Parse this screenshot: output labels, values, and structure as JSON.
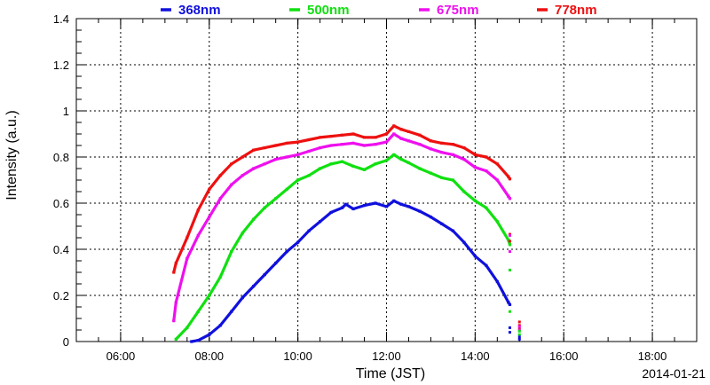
{
  "chart_data": {
    "type": "scatter",
    "xlabel": "Time (JST)",
    "ylabel": "Intensity (a.u.)",
    "date": "2014-01-21",
    "xlim": [
      "05:00",
      "19:00"
    ],
    "ylim": [
      0,
      1.4
    ],
    "grid": true,
    "legend_position": "top",
    "x_ticks": [
      "06:00",
      "08:00",
      "10:00",
      "12:00",
      "14:00",
      "16:00",
      "18:00"
    ],
    "y_ticks": [
      "0",
      "0.2",
      "0.4",
      "0.6",
      "0.8",
      "1",
      "1.2",
      "1.4"
    ],
    "series": [
      {
        "name": "368nm",
        "color": "#1010dd",
        "points": [
          [
            "07:36",
            0.0
          ],
          [
            "07:45",
            0.005
          ],
          [
            "08:00",
            0.03
          ],
          [
            "08:15",
            0.07
          ],
          [
            "08:30",
            0.13
          ],
          [
            "08:45",
            0.19
          ],
          [
            "09:00",
            0.24
          ],
          [
            "09:15",
            0.29
          ],
          [
            "09:30",
            0.34
          ],
          [
            "09:45",
            0.39
          ],
          [
            "10:00",
            0.43
          ],
          [
            "10:15",
            0.48
          ],
          [
            "10:30",
            0.52
          ],
          [
            "10:45",
            0.56
          ],
          [
            "11:00",
            0.58
          ],
          [
            "11:05",
            0.595
          ],
          [
            "11:15",
            0.575
          ],
          [
            "11:30",
            0.59
          ],
          [
            "11:45",
            0.6
          ],
          [
            "12:00",
            0.585
          ],
          [
            "12:10",
            0.61
          ],
          [
            "12:20",
            0.595
          ],
          [
            "12:30",
            0.585
          ],
          [
            "12:45",
            0.565
          ],
          [
            "13:00",
            0.54
          ],
          [
            "13:15",
            0.51
          ],
          [
            "13:30",
            0.48
          ],
          [
            "13:45",
            0.43
          ],
          [
            "14:00",
            0.37
          ],
          [
            "14:15",
            0.33
          ],
          [
            "14:30",
            0.26
          ],
          [
            "14:45",
            0.17
          ],
          [
            "14:47",
            0.16
          ]
        ]
      },
      {
        "name": "500nm",
        "color": "#10e010",
        "points": [
          [
            "07:15",
            0.01
          ],
          [
            "07:30",
            0.06
          ],
          [
            "07:45",
            0.13
          ],
          [
            "08:00",
            0.2
          ],
          [
            "08:15",
            0.28
          ],
          [
            "08:30",
            0.39
          ],
          [
            "08:45",
            0.47
          ],
          [
            "09:00",
            0.53
          ],
          [
            "09:15",
            0.58
          ],
          [
            "09:30",
            0.62
          ],
          [
            "09:45",
            0.66
          ],
          [
            "10:00",
            0.7
          ],
          [
            "10:15",
            0.72
          ],
          [
            "10:30",
            0.75
          ],
          [
            "10:45",
            0.77
          ],
          [
            "11:00",
            0.78
          ],
          [
            "11:15",
            0.76
          ],
          [
            "11:30",
            0.745
          ],
          [
            "11:45",
            0.77
          ],
          [
            "12:00",
            0.785
          ],
          [
            "12:10",
            0.81
          ],
          [
            "12:20",
            0.79
          ],
          [
            "12:30",
            0.775
          ],
          [
            "12:45",
            0.75
          ],
          [
            "13:00",
            0.73
          ],
          [
            "13:15",
            0.71
          ],
          [
            "13:30",
            0.7
          ],
          [
            "13:45",
            0.65
          ],
          [
            "14:00",
            0.61
          ],
          [
            "14:15",
            0.58
          ],
          [
            "14:30",
            0.52
          ],
          [
            "14:45",
            0.44
          ],
          [
            "14:47",
            0.42
          ]
        ]
      },
      {
        "name": "675nm",
        "color": "#ee10ee",
        "points": [
          [
            "07:12",
            0.09
          ],
          [
            "07:15",
            0.17
          ],
          [
            "07:30",
            0.36
          ],
          [
            "07:45",
            0.46
          ],
          [
            "08:00",
            0.54
          ],
          [
            "08:15",
            0.62
          ],
          [
            "08:30",
            0.68
          ],
          [
            "08:45",
            0.72
          ],
          [
            "09:00",
            0.75
          ],
          [
            "09:15",
            0.77
          ],
          [
            "09:30",
            0.79
          ],
          [
            "09:45",
            0.8
          ],
          [
            "10:00",
            0.81
          ],
          [
            "10:15",
            0.825
          ],
          [
            "10:30",
            0.84
          ],
          [
            "10:45",
            0.85
          ],
          [
            "11:00",
            0.855
          ],
          [
            "11:15",
            0.86
          ],
          [
            "11:30",
            0.85
          ],
          [
            "11:45",
            0.855
          ],
          [
            "12:00",
            0.865
          ],
          [
            "12:10",
            0.9
          ],
          [
            "12:20",
            0.88
          ],
          [
            "12:30",
            0.87
          ],
          [
            "12:45",
            0.855
          ],
          [
            "13:00",
            0.835
          ],
          [
            "13:15",
            0.82
          ],
          [
            "13:30",
            0.81
          ],
          [
            "13:45",
            0.79
          ],
          [
            "14:00",
            0.755
          ],
          [
            "14:15",
            0.74
          ],
          [
            "14:30",
            0.7
          ],
          [
            "14:45",
            0.63
          ],
          [
            "14:47",
            0.62
          ]
        ]
      },
      {
        "name": "778nm",
        "color": "#ee1010",
        "points": [
          [
            "07:12",
            0.3
          ],
          [
            "07:15",
            0.34
          ],
          [
            "07:30",
            0.45
          ],
          [
            "07:45",
            0.57
          ],
          [
            "08:00",
            0.66
          ],
          [
            "08:15",
            0.72
          ],
          [
            "08:30",
            0.77
          ],
          [
            "08:45",
            0.8
          ],
          [
            "09:00",
            0.83
          ],
          [
            "09:15",
            0.84
          ],
          [
            "09:30",
            0.85
          ],
          [
            "09:45",
            0.86
          ],
          [
            "10:00",
            0.865
          ],
          [
            "10:15",
            0.875
          ],
          [
            "10:30",
            0.885
          ],
          [
            "10:45",
            0.89
          ],
          [
            "11:00",
            0.895
          ],
          [
            "11:15",
            0.9
          ],
          [
            "11:30",
            0.885
          ],
          [
            "11:45",
            0.885
          ],
          [
            "12:00",
            0.9
          ],
          [
            "12:10",
            0.935
          ],
          [
            "12:20",
            0.92
          ],
          [
            "12:30",
            0.91
          ],
          [
            "12:45",
            0.895
          ],
          [
            "13:00",
            0.87
          ],
          [
            "13:15",
            0.86
          ],
          [
            "13:30",
            0.855
          ],
          [
            "13:45",
            0.84
          ],
          [
            "14:00",
            0.81
          ],
          [
            "14:15",
            0.8
          ],
          [
            "14:30",
            0.77
          ],
          [
            "14:45",
            0.715
          ],
          [
            "14:47",
            0.705
          ]
        ]
      }
    ],
    "scattered_points": [
      {
        "series": "778nm",
        "points": [
          [
            "14:47",
            0.465
          ],
          [
            "14:47",
            0.435
          ],
          [
            "15:00",
            0.085
          ],
          [
            "15:00",
            0.07
          ],
          [
            "15:00",
            0.055
          ]
        ]
      },
      {
        "series": "675nm",
        "points": [
          [
            "14:47",
            0.46
          ],
          [
            "14:47",
            0.39
          ],
          [
            "15:00",
            0.065
          ],
          [
            "15:00",
            0.05
          ]
        ]
      },
      {
        "series": "500nm",
        "points": [
          [
            "14:47",
            0.31
          ],
          [
            "14:47",
            0.13
          ],
          [
            "15:00",
            0.045
          ],
          [
            "15:00",
            0.03
          ]
        ]
      },
      {
        "series": "368nm",
        "points": [
          [
            "14:47",
            0.06
          ],
          [
            "14:47",
            0.04
          ],
          [
            "15:00",
            0.02
          ],
          [
            "15:00",
            0.01
          ]
        ]
      }
    ]
  }
}
